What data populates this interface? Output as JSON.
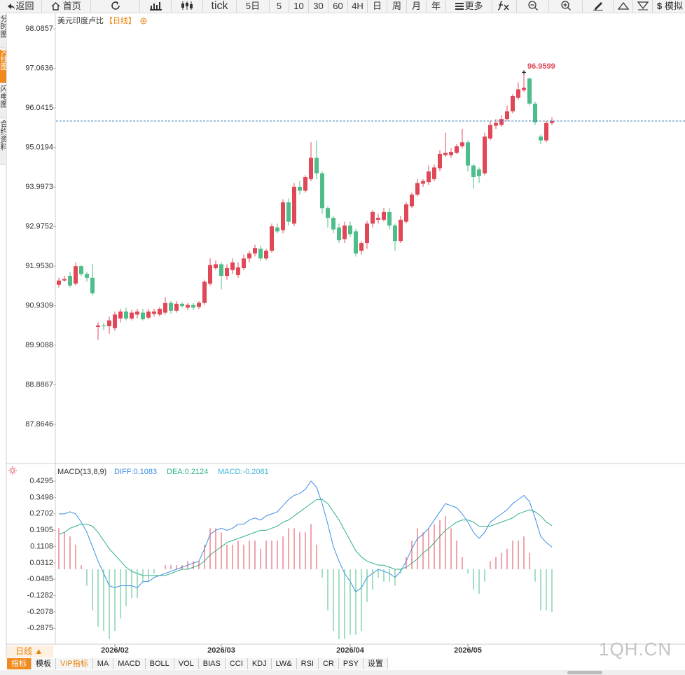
{
  "toolbar": [
    "返回",
    "首页",
    "tick",
    "5日",
    "5",
    "10",
    "30",
    "60",
    "4H",
    "日",
    "周",
    "月",
    "年",
    "更多",
    "模拟"
  ],
  "side_tabs": [
    "分时图",
    "K线图",
    "闪电图",
    "合约资料"
  ],
  "footer": {
    "period": "日线 ▲",
    "tabs": [
      "指标",
      "模板",
      "VIP指标",
      "MA",
      "MACD",
      "BOLL",
      "VOL",
      "BIAS",
      "CCI",
      "KDJ",
      "LW&",
      "RSI",
      "CR",
      "PSY",
      "设置"
    ]
  },
  "watermark": "1QH.CN",
  "chart_data": [
    {
      "type": "candlestick",
      "title": "美元印度卢比",
      "period": "【日线】",
      "categories": [
        null,
        null,
        null,
        null,
        null,
        null,
        null,
        null,
        null,
        null,
        "2026/02",
        null,
        null,
        null,
        null,
        null,
        null,
        null,
        null,
        null,
        null,
        null,
        null,
        null,
        null,
        null,
        null,
        null,
        null,
        "2026/03",
        null,
        null,
        null,
        null,
        null,
        null,
        null,
        null,
        null,
        null,
        null,
        null,
        null,
        null,
        null,
        null,
        null,
        null,
        null,
        null,
        null,
        null,
        "2026/04",
        null,
        null,
        null,
        null,
        null,
        null,
        null,
        null,
        null,
        null,
        null,
        null,
        null,
        null,
        null,
        null,
        null,
        null,
        null,
        null,
        "2026/05",
        null,
        null,
        null,
        null,
        null,
        null,
        null,
        null,
        null,
        null,
        null,
        null,
        null,
        null,
        null
      ],
      "open": [
        91.47,
        91.58,
        91.7,
        91.5,
        91.95,
        91.75,
        91.65,
        90.38,
        90.42,
        90.4,
        90.35,
        90.6,
        90.78,
        90.6,
        90.7,
        90.75,
        90.62,
        90.72,
        90.7,
        90.75,
        91.0,
        90.8,
        90.98,
        90.88,
        90.95,
        90.9,
        91.0,
        91.5,
        91.9,
        92.0,
        91.7,
        91.85,
        91.72,
        91.9,
        92.15,
        92.28,
        92.4,
        92.15,
        92.35,
        92.95,
        92.88,
        93.6,
        93.05,
        94.0,
        93.9,
        94.2,
        94.75,
        94.35,
        93.45,
        93.2,
        92.95,
        92.65,
        93.0,
        92.85,
        92.35,
        92.55,
        93.05,
        93.15,
        93.15,
        93.35,
        93.0,
        92.6,
        93.1,
        93.5,
        93.8,
        94.08,
        94.12,
        94.2,
        94.48,
        94.82,
        94.82,
        94.88,
        95.05,
        95.15,
        94.55,
        94.45,
        94.35,
        95.25,
        95.58,
        95.6,
        95.75,
        95.95,
        96.3,
        96.5,
        96.8,
        96.15,
        95.3,
        95.2,
        95.65
      ],
      "high": [
        91.65,
        91.7,
        91.8,
        92.05,
        91.98,
        91.8,
        92.0,
        90.5,
        90.48,
        90.65,
        90.78,
        90.85,
        90.88,
        90.82,
        90.85,
        90.85,
        90.85,
        90.85,
        90.9,
        91.15,
        91.05,
        91.05,
        91.02,
        91.0,
        91.0,
        91.05,
        91.6,
        92.15,
        92.1,
        92.05,
        92.0,
        92.15,
        92.05,
        92.25,
        92.35,
        92.5,
        92.48,
        92.4,
        93.05,
        93.05,
        93.68,
        93.7,
        94.1,
        94.15,
        94.3,
        95.15,
        95.2,
        94.4,
        93.5,
        93.25,
        93.05,
        93.1,
        93.1,
        92.92,
        92.6,
        93.12,
        93.4,
        93.3,
        93.45,
        93.45,
        93.05,
        93.25,
        93.6,
        93.85,
        94.2,
        94.2,
        94.55,
        94.58,
        94.95,
        95.4,
        95.0,
        95.1,
        95.5,
        95.2,
        94.6,
        94.5,
        95.4,
        95.7,
        95.75,
        95.85,
        96.1,
        96.4,
        96.7,
        96.9599,
        96.82,
        96.2,
        95.35,
        95.7,
        95.8
      ],
      "low": [
        91.4,
        91.55,
        91.4,
        91.45,
        91.7,
        91.55,
        91.2,
        90.05,
        90.3,
        90.2,
        90.28,
        90.5,
        90.55,
        90.55,
        90.6,
        90.55,
        90.58,
        90.65,
        90.65,
        90.7,
        90.72,
        90.75,
        90.88,
        90.82,
        90.82,
        90.85,
        90.95,
        91.45,
        91.85,
        91.35,
        91.6,
        91.75,
        91.65,
        91.85,
        92.05,
        92.2,
        92.08,
        92.1,
        92.3,
        92.8,
        92.8,
        93.0,
        92.98,
        93.8,
        93.85,
        94.15,
        94.2,
        93.3,
        92.95,
        92.8,
        92.55,
        92.55,
        92.7,
        92.2,
        92.25,
        92.4,
        92.95,
        93.05,
        93.1,
        92.9,
        92.35,
        92.55,
        93.05,
        93.45,
        93.75,
        94.0,
        94.05,
        94.15,
        94.4,
        94.78,
        94.75,
        94.85,
        95.0,
        94.4,
        93.95,
        94.1,
        94.3,
        95.2,
        95.5,
        95.55,
        95.7,
        95.9,
        96.25,
        96.45,
        96.1,
        95.6,
        95.1,
        95.15,
        95.6
      ],
      "close": [
        91.58,
        91.62,
        91.45,
        91.95,
        91.75,
        91.65,
        91.25,
        90.42,
        90.4,
        90.55,
        90.7,
        90.78,
        90.6,
        90.75,
        90.78,
        90.58,
        90.78,
        90.78,
        90.85,
        91.0,
        90.8,
        90.98,
        90.92,
        90.95,
        90.88,
        91.0,
        91.55,
        91.98,
        92.0,
        91.7,
        91.9,
        92.05,
        91.92,
        92.15,
        92.28,
        92.42,
        92.15,
        92.35,
        92.98,
        92.85,
        93.6,
        93.1,
        94.0,
        93.9,
        94.25,
        94.75,
        94.35,
        93.45,
        93.2,
        92.9,
        92.62,
        93.0,
        92.78,
        92.28,
        92.55,
        93.05,
        93.35,
        93.2,
        93.35,
        93.0,
        92.6,
        93.15,
        93.55,
        93.8,
        94.1,
        94.15,
        94.4,
        94.5,
        94.85,
        94.88,
        94.9,
        95.05,
        95.15,
        94.55,
        94.25,
        94.28,
        95.3,
        95.6,
        95.65,
        95.75,
        95.95,
        96.35,
        96.52,
        96.56,
        96.15,
        95.67,
        95.2,
        95.65,
        95.7
      ],
      "up_color": "#e04858",
      "down_color": "#4dbd8a",
      "last_line_color": "#3b7fb0",
      "ylim": [
        86.852,
        98.502
      ],
      "yticks": [
        98.0857,
        97.0636,
        96.0415,
        95.0194,
        93.9973,
        92.9752,
        {
          "value": 91.953,
          "label": "91.9530"
        },
        90.9309,
        89.9088,
        88.8867,
        87.8646
      ]
    },
    {
      "type": "macd",
      "title": "MACD(13,8,9)",
      "legend": [
        "DIFF:0.1083",
        "DEA:0.2124",
        "MACD:-0.2081"
      ],
      "series": [
        {
          "color": "#3a8ee6",
          "values": [
            0.27,
            0.27,
            0.28,
            0.27,
            0.23,
            0.18,
            0.11,
            0.04,
            -0.02,
            -0.08,
            -0.09,
            -0.08,
            -0.08,
            -0.08,
            -0.09,
            -0.06,
            -0.06,
            -0.04,
            -0.03,
            -0.02,
            -0.01,
            0,
            0.01,
            0.02,
            0.03,
            0.04,
            0.1,
            0.17,
            0.19,
            0.2,
            0.19,
            0.2,
            0.22,
            0.22,
            0.24,
            0.25,
            0.24,
            0.26,
            0.27,
            0.28,
            0.31,
            0.34,
            0.36,
            0.37,
            0.39,
            0.43,
            0.4,
            0.32,
            0.22,
            0.11,
            0.04,
            -0.02,
            -0.06,
            -0.11,
            -0.09,
            -0.04,
            -0.02,
            0,
            -0.01,
            -0.02,
            -0.04,
            -0.01,
            0.04,
            0.1,
            0.15,
            0.17,
            0.2,
            0.24,
            0.28,
            0.32,
            0.31,
            0.3,
            0.27,
            0.23,
            0.18,
            0.15,
            0.18,
            0.23,
            0.25,
            0.27,
            0.29,
            0.32,
            0.34,
            0.36,
            0.33,
            0.25,
            0.16,
            0.13,
            0.1083
          ]
        },
        {
          "color": "#2fb08a",
          "values": [
            0.17,
            0.18,
            0.2,
            0.21,
            0.22,
            0.22,
            0.21,
            0.18,
            0.14,
            0.1,
            0.07,
            0.04,
            0.01,
            -0.01,
            -0.02,
            -0.03,
            -0.03,
            -0.03,
            -0.03,
            -0.03,
            -0.02,
            -0.01,
            0,
            0,
            0.01,
            0.02,
            0.04,
            0.07,
            0.09,
            0.11,
            0.13,
            0.14,
            0.15,
            0.16,
            0.17,
            0.18,
            0.19,
            0.19,
            0.2,
            0.21,
            0.23,
            0.24,
            0.26,
            0.28,
            0.3,
            0.32,
            0.34,
            0.34,
            0.32,
            0.28,
            0.24,
            0.19,
            0.14,
            0.09,
            0.06,
            0.04,
            0.03,
            0.02,
            0.02,
            0.01,
            0,
            0,
            0.01,
            0.03,
            0.05,
            0.08,
            0.1,
            0.13,
            0.16,
            0.19,
            0.21,
            0.23,
            0.24,
            0.24,
            0.23,
            0.21,
            0.21,
            0.21,
            0.22,
            0.23,
            0.24,
            0.25,
            0.27,
            0.28,
            0.29,
            0.28,
            0.26,
            0.23,
            0.2124
          ]
        },
        {
          "color": "#3fb4d6",
          "up_color": "#e04858",
          "down_color": "#4dbd8a",
          "values": [
            0.2,
            0.18,
            0.16,
            0.12,
            0.02,
            -0.08,
            -0.2,
            -0.28,
            -0.3,
            -0.34,
            -0.3,
            -0.24,
            -0.18,
            -0.14,
            -0.14,
            -0.06,
            -0.06,
            -0.02,
            0,
            0.02,
            0.02,
            0.02,
            0.02,
            0.04,
            0.04,
            0.04,
            0.12,
            0.2,
            0.2,
            0.18,
            0.12,
            0.12,
            0.14,
            0.12,
            0.14,
            0.14,
            0.1,
            0.14,
            0.14,
            0.14,
            0.16,
            0.2,
            0.2,
            0.18,
            0.18,
            0.22,
            0.12,
            -0.04,
            -0.2,
            -0.3,
            -0.34,
            -0.34,
            -0.32,
            -0.32,
            -0.3,
            -0.16,
            -0.1,
            -0.04,
            -0.06,
            -0.06,
            -0.08,
            -0.02,
            0.06,
            0.14,
            0.2,
            0.18,
            0.2,
            0.22,
            0.24,
            0.26,
            0.2,
            0.14,
            0.06,
            -0.02,
            -0.1,
            -0.12,
            -0.06,
            0.04,
            0.06,
            0.08,
            0.1,
            0.14,
            0.14,
            0.16,
            0.08,
            -0.06,
            -0.2,
            -0.2,
            -0.2081
          ]
        }
      ],
      "ylim": [
        -0.365,
        0.488
      ],
      "yticks": [
        0.4295,
        0.3498,
        0.2702,
        0.1905,
        0.1108,
        0.0312,
        -0.0485,
        -0.1282,
        -0.2078,
        -0.2875
      ]
    }
  ]
}
